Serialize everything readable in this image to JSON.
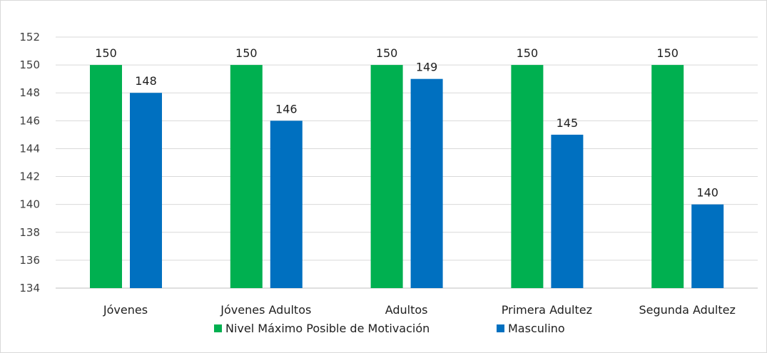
{
  "chart_data": {
    "type": "bar",
    "title": "",
    "xlabel": "",
    "ylabel": "",
    "categories": [
      "Jóvenes",
      "Jóvenes Adultos",
      "Adultos",
      "Primera Adultez",
      "Segunda Adultez"
    ],
    "series": [
      {
        "name": "Nivel Máximo Posible de Motivación",
        "color": "#00B050",
        "values": [
          150,
          150,
          150,
          150,
          150
        ]
      },
      {
        "name": "Masculino",
        "color": "#0070C0",
        "values": [
          148,
          146,
          149,
          145,
          140
        ]
      }
    ],
    "ylim": [
      134,
      152
    ],
    "yticks": [
      134,
      136,
      138,
      140,
      142,
      144,
      146,
      148,
      150,
      152
    ],
    "grid": true,
    "legend_position": "bottom",
    "data_labels": true
  }
}
